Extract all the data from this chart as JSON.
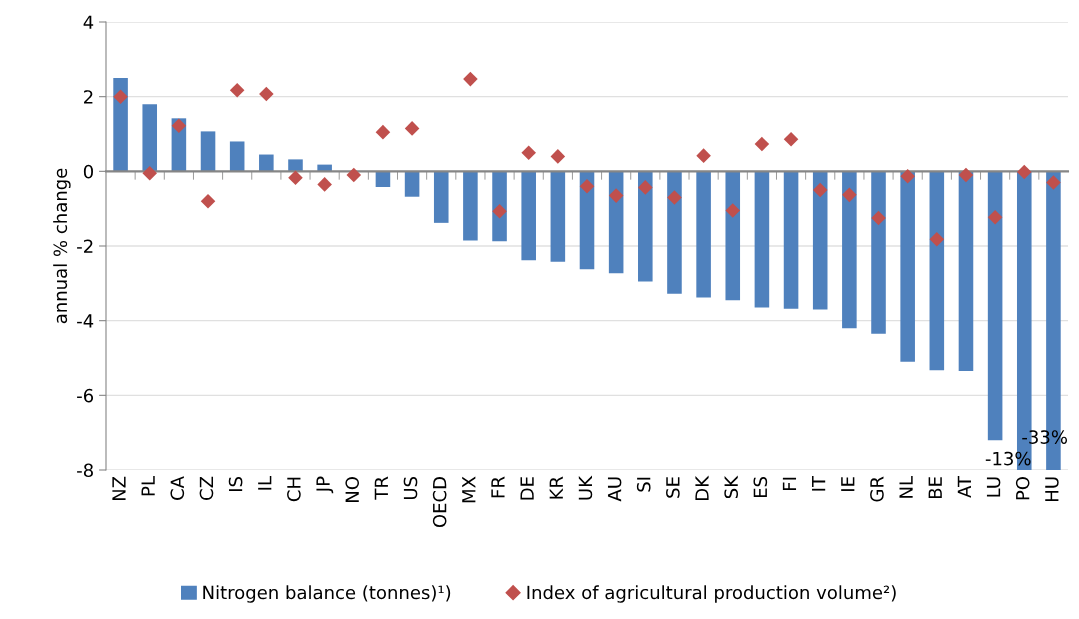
{
  "chart_data": {
    "type": "bar",
    "ylabel": "annual % change",
    "categories": [
      "NZ",
      "PL",
      "CA",
      "CZ",
      "IS",
      "IL",
      "CH",
      "JP",
      "NO",
      "TR",
      "US",
      "OECD",
      "MX",
      "FR",
      "DE",
      "KR",
      "UK",
      "AU",
      "SI",
      "SE",
      "DK",
      "SK",
      "ES",
      "FI",
      "IT",
      "IE",
      "GR",
      "NL",
      "BE",
      "AT",
      "LU",
      "PO",
      "HU"
    ],
    "series": [
      {
        "name": "Nitrogen balance (tonnes)¹)",
        "color": "#4f81bd",
        "values": [
          2.5,
          1.8,
          1.42,
          1.07,
          0.8,
          0.45,
          0.32,
          0.18,
          null,
          -0.42,
          -0.68,
          -1.38,
          -1.85,
          -1.87,
          -2.38,
          -2.42,
          -2.62,
          -2.73,
          -2.95,
          -3.28,
          -3.38,
          -3.45,
          -3.65,
          -3.68,
          -3.7,
          -4.2,
          -4.35,
          -5.1,
          -5.33,
          -5.35,
          -7.2,
          -8,
          -8
        ]
      },
      {
        "name": "Index of agricultural production volume²)",
        "type": "scatter",
        "color": "#c0504d",
        "marker": "diamond",
        "values": [
          2.0,
          -0.05,
          1.22,
          -0.8,
          2.17,
          2.07,
          -0.17,
          -0.35,
          -0.1,
          1.05,
          1.15,
          null,
          2.47,
          -1.07,
          0.5,
          0.4,
          -0.4,
          -0.65,
          -0.43,
          -0.7,
          0.42,
          -1.05,
          0.73,
          0.86,
          -0.5,
          -0.63,
          -1.25,
          -0.13,
          -1.82,
          -0.1,
          -1.23,
          -0.02,
          -0.3
        ]
      }
    ],
    "annotations": [
      "-13%",
      "-33%"
    ],
    "ylim": [
      -8,
      4
    ],
    "yticks": [
      -8,
      -6,
      -4,
      -2,
      0,
      2,
      4
    ],
    "grid": "y",
    "legend": "bottom"
  }
}
